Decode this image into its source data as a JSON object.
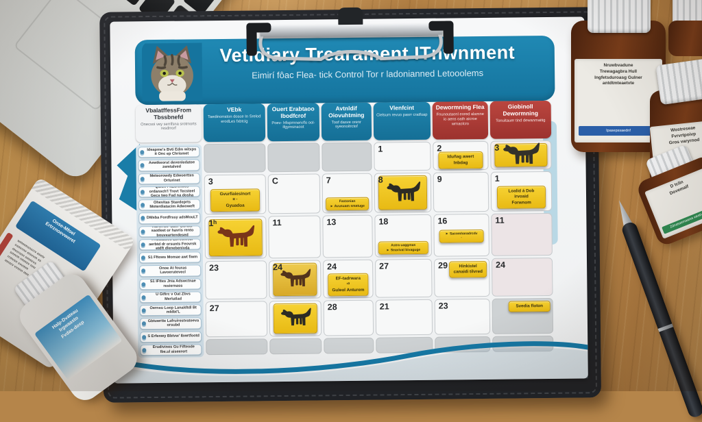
{
  "poster": {
    "title": "Vetidiary Trearament ITnwnment",
    "subtitle": "Eimirí fôac Flea- tick Control Tor r ladonianned Letooolems",
    "colors": {
      "teal": "#1a7da8",
      "red": "#b2403a",
      "sticker_yellow": "#eec21d",
      "cell_grey": "#ced2d4",
      "cell_pink": "#ece4e6"
    },
    "header_columns": [
      {
        "label": "VbalatffessFrom Tbssbnefd",
        "sub": "Onecsoi vey serrifsna srotmorts resdrrorf",
        "variant": "light"
      },
      {
        "label": "VEbk",
        "sub": "Taedinorraton dosce In Srelod erodLes fxbtcig",
        "variant": "blue"
      },
      {
        "label": "Ouert Erabtaoo lbodfcrof",
        "sub": "Poev- hfisprnnerv/fo ool-ifgymsnaoot",
        "variant": "blue"
      },
      {
        "label": "Avtnldif Oiovuhtming",
        "sub": "Toof dasve orenr syeonoitrctof",
        "variant": "blue"
      },
      {
        "label": "Vlenfcint",
        "sub": "Cielsum revuo pasrr cratfuap",
        "variant": "blue"
      },
      {
        "label": "Dewormning Flea",
        "sub": "Fnunoutaonl eored alamne io aens oath aicroe wrnaolcro",
        "variant": "red"
      },
      {
        "label": "Giobinoll Dewormning",
        "sub": "Tonuitauer tind dewanmaitig",
        "variant": "red"
      }
    ],
    "sidebar_items": [
      "Ideapme's Bvti Edm witxps it Onc ep Chrismet",
      "Aewtkeorst devenledatee zemtalved",
      "Meteorowdy Edwoerttes Orturinet",
      "Quich FkEorthwes ordansch'l Trevt Tecsteel Gecs two Fad na dosha",
      "Ohevitas Stavdeprts Moterdiatacim Adwoweft",
      "DMsba Fordfrssy adsMouLT",
      "Kurtvrtst 'Sact' Border saotleet or havris rento bouveartendesed",
      "I Aowatsed Ebredtosur aerbtd dr orsunts Feovrsk etdft dlenebenivda",
      "S1 Fftows Momae awt fiwm",
      "Onoe At fouras Lavoerutevecl",
      "S1 IFttes Jnia Adswctnae resiernass",
      "U Gtfirc v Oat Zbvs Merlutlad",
      "Oernsu Loep Lanaldtdl Bt mldbt'L",
      "Gbtuwrtte Lafruirestvateeva orsubd",
      "S Erfenwy Bbtvw' Ibwrtfootd",
      "Erudivines Gu Fifteode Ibe.ul aiseerert"
    ],
    "calendar_rows": [
      [
        {
          "bg": "grey"
        },
        {
          "bg": "grey"
        },
        {
          "bg": "grey"
        },
        {
          "day": "1"
        },
        {
          "day": "2",
          "sticker": {
            "kind": "text",
            "pos": "mid",
            "lines": [
              "Iduñag awert",
              "Inbdag"
            ]
          }
        },
        {
          "day": "3",
          "bg": "pinklight",
          "sticker": {
            "kind": "dog",
            "pos": "fill",
            "color": "#33322a"
          }
        }
      ],
      [
        {
          "day": "3",
          "sticker": {
            "kind": "text",
            "pos": "mid",
            "lines": [
              "Gvurfiaiesinort",
              "¤ ·",
              "Gyuadoa"
            ]
          }
        },
        {
          "day": "C"
        },
        {
          "day": "7",
          "sticker": {
            "kind": "tiny",
            "pos": "bottom",
            "lines": [
              "Fastonian",
              "► Avusuam smatuge"
            ]
          }
        },
        {
          "day": "8",
          "sticker": {
            "kind": "dog",
            "pos": "fill",
            "color": "#2c2b24"
          }
        },
        {
          "day": "9"
        },
        {
          "day": "1",
          "sticker": {
            "kind": "text",
            "pos": "mid",
            "lines": [
              "Loalid á Dob",
              "irvoaid",
              "Forwnom"
            ]
          }
        }
      ],
      [
        {
          "day": "1ʰ",
          "sticker": {
            "kind": "dog",
            "pos": "fill",
            "color": "#79351a"
          }
        },
        {
          "day": "11"
        },
        {
          "day": "13"
        },
        {
          "day": "18",
          "sticker": {
            "kind": "tiny",
            "pos": "bottom",
            "lines": [
              "Astra uaggmas",
              "► Seavival bivaguge"
            ]
          }
        },
        {
          "day": "16",
          "sticker": {
            "kind": "tiny",
            "pos": "mid",
            "lines": [
              "► Sacomharadrcdv",
              "·"
            ]
          }
        },
        {
          "day": "11",
          "bg": "pink"
        }
      ],
      [
        {
          "day": "23"
        },
        {
          "day": "24",
          "sticker": {
            "kind": "dogphoto",
            "pos": "fill",
            "color": "#53331c"
          }
        },
        {
          "day": "24",
          "sticker": {
            "kind": "text",
            "pos": "mid",
            "lines": [
              "EF-tadrwara",
              "¹⁰",
              "Guleol Anturem"
            ]
          }
        },
        {
          "day": "27"
        },
        {
          "day": "29",
          "sticker": {
            "kind": "text",
            "pos": "top",
            "lines": [
              "Hinkistel",
              "canaidi tilvred"
            ]
          }
        },
        {
          "day": "24",
          "bg": "pink"
        }
      ],
      [
        {
          "day": "27"
        },
        {
          "day": "",
          "sticker": {
            "kind": "dog",
            "pos": "fill",
            "color": "#2c2b24"
          }
        },
        {
          "day": "28"
        },
        {
          "day": "21"
        },
        {
          "day": "23"
        },
        {
          "day": "",
          "bg": "grey",
          "sticker": {
            "kind": "text",
            "pos": "top",
            "lines": [
              "Svedia floton"
            ]
          }
        }
      ],
      [
        {
          "bg": "grey"
        },
        {
          "bg": "grey"
        },
        {
          "bg": "grey"
        },
        {
          "bg": "grey"
        },
        {
          "bg": "grey"
        },
        {
          "bg": "grey"
        }
      ]
    ]
  },
  "bottles": {
    "large": {
      "lines": [
        "Nruwbvadune",
        "Trewagagbra Hull",
        "Ingfetsduroasg Gulner",
        "antdtmteaetvte"
      ],
      "stripe": "Ipasepssaednf"
    },
    "middle": {
      "lines": [
        "Wostreseae",
        "Fvrvrtpoivp",
        "Gros varyrnod"
      ]
    },
    "small_green": {
      "lines": [
        "D tclin",
        "Dovemaif"
      ],
      "stripe": "Zdnasaemaares wkstivmailrg"
    }
  },
  "sachet": {
    "brand_lines": [
      "Onse-Mfoel",
      "Ertrznoevweret"
    ],
    "body_lines": [
      "wmmmsnsrrv asetv",
      "ssmrrnv etsvvm ss",
      "mvvrsnn smmrvs",
      "snvvm rmmsv nnv",
      "rrmvsn svvmm",
      "mnsrv vvsnn mm"
    ]
  },
  "pill_bottle": {
    "lines": [
      "Halp-Dvateau",
      "Irgwaasto",
      "Fvdas-dosp"
    ]
  }
}
